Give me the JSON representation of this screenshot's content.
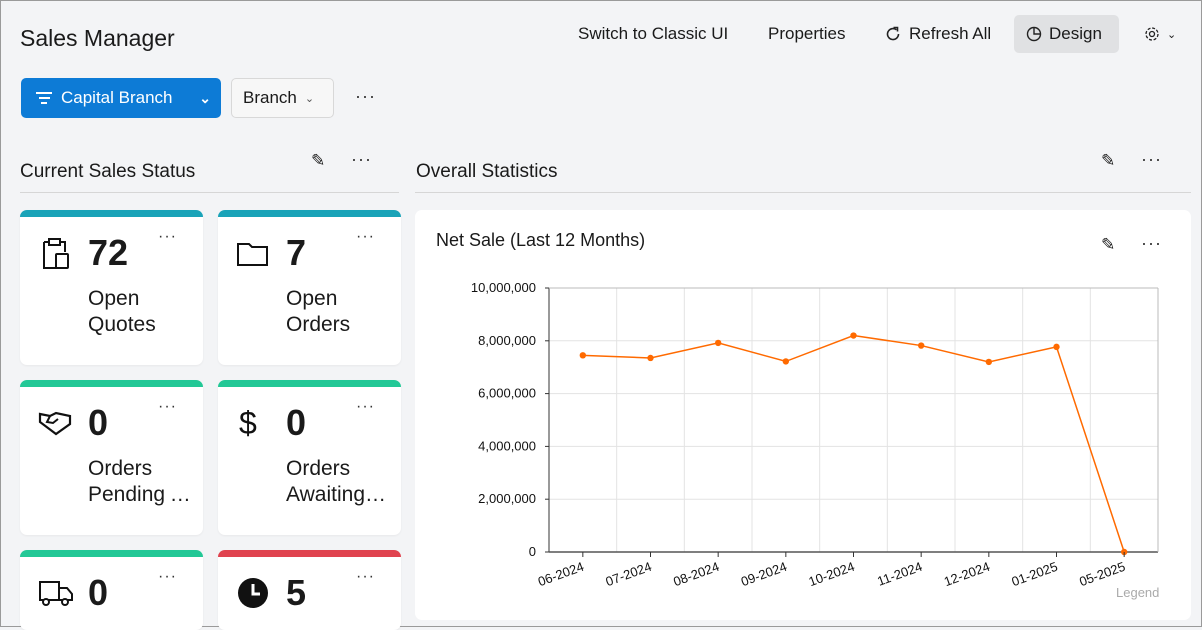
{
  "header": {
    "title": "Sales Manager",
    "switch_label": "Switch to Classic UI",
    "properties_label": "Properties",
    "refresh_label": "Refresh All",
    "design_label": "Design"
  },
  "filters": {
    "filter_label": "Capital Branch",
    "branch_label": "Branch",
    "more": "···"
  },
  "left_section": {
    "title": "Current Sales Status",
    "more": "···"
  },
  "right_section": {
    "title": "Overall Statistics",
    "more": "···"
  },
  "cards": [
    {
      "value": "72",
      "line1": "Open",
      "line2": "Quotes",
      "icon": "clipboard-icon",
      "color": "#1aa3b8",
      "more": "···"
    },
    {
      "value": "7",
      "line1": "Open",
      "line2": "Orders",
      "icon": "folder-icon",
      "color": "#1aa3b8",
      "more": "···"
    },
    {
      "value": "0",
      "line1": "Orders",
      "line2": "Pending Approval",
      "icon": "handshake-icon",
      "color": "#23c896",
      "more": "···"
    },
    {
      "value": "0",
      "line1": "Orders",
      "line2": "Awaiting Payment",
      "icon": "dollar-icon",
      "color": "#23c896",
      "more": "···"
    },
    {
      "value": "0",
      "line1": "",
      "line2": "",
      "icon": "truck-icon",
      "color": "#23c896",
      "more": "···"
    },
    {
      "value": "5",
      "line1": "",
      "line2": "",
      "icon": "clock-icon",
      "color": "#e0434f",
      "more": "···"
    }
  ],
  "chart_panel": {
    "title": "Net Sale (Last 12 Months)",
    "more": "···",
    "legend_label": "Legend"
  },
  "chart_data": {
    "type": "line",
    "title": "Net Sale (Last 12 Months)",
    "categories": [
      "06-2024",
      "07-2024",
      "08-2024",
      "09-2024",
      "10-2024",
      "11-2024",
      "12-2024",
      "01-2025",
      "05-2025"
    ],
    "values": [
      7450000,
      7350000,
      7920000,
      7220000,
      8200000,
      7820000,
      7200000,
      7770000,
      0
    ],
    "ylim": [
      0,
      10000000
    ],
    "yticks": [
      "0",
      "2,000,000",
      "4,000,000",
      "6,000,000",
      "8,000,000",
      "10,000,000"
    ],
    "grid": true,
    "color": "#ff6a00",
    "legend": "bottom-right"
  }
}
